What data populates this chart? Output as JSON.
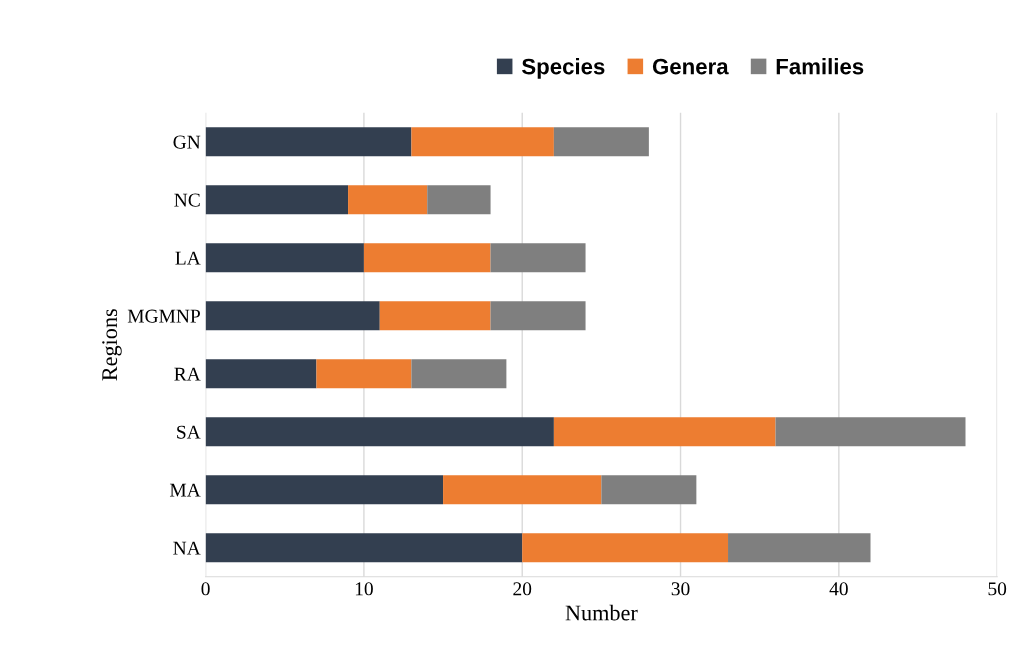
{
  "chart_data": {
    "type": "bar",
    "orientation": "horizontal",
    "stacked": true,
    "xlabel": "Number",
    "ylabel": "Regions",
    "categories": [
      "GN",
      "NC",
      "LA",
      "MGMNP",
      "RA",
      "SA",
      "MA",
      "NA"
    ],
    "series": [
      {
        "name": "Species",
        "color": "#333f50",
        "values": [
          13,
          9,
          10,
          11,
          7,
          22,
          15,
          20
        ]
      },
      {
        "name": "Genera",
        "color": "#ed7d31",
        "values": [
          9,
          5,
          8,
          7,
          6,
          14,
          10,
          13
        ]
      },
      {
        "name": "Families",
        "color": "#7f7f7f",
        "values": [
          6,
          4,
          6,
          6,
          6,
          12,
          6,
          9
        ]
      }
    ],
    "xlim": [
      0,
      50
    ],
    "xticks": [
      0,
      10,
      20,
      30,
      40,
      50
    ],
    "grid": "x",
    "legend": "top"
  }
}
